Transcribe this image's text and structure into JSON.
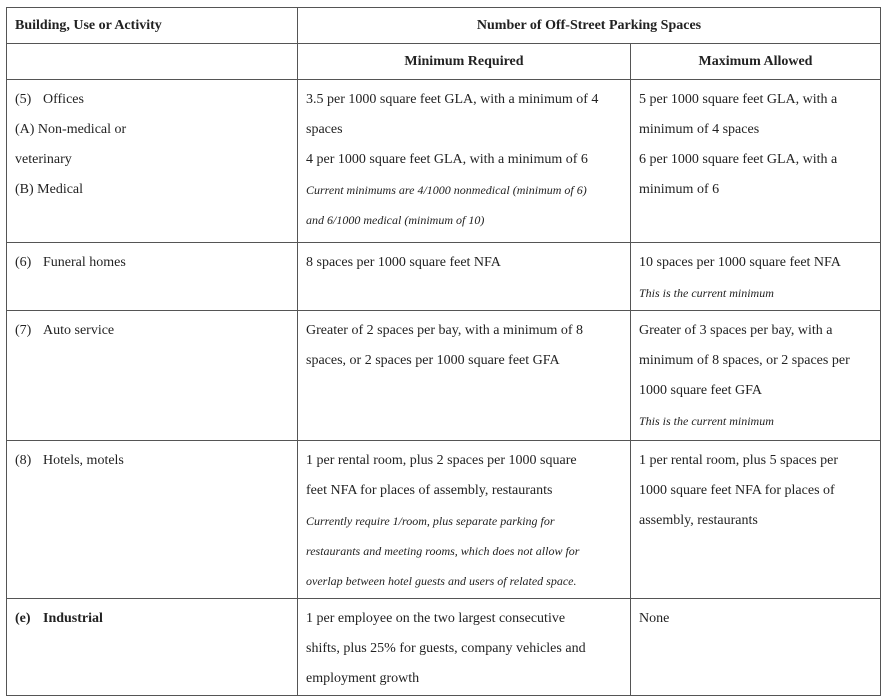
{
  "header": {
    "col_building": "Building, Use or Activity",
    "col_spaces": "Number of Off-Street Parking Spaces",
    "col_min": "Minimum Required",
    "col_max": "Maximum Allowed"
  },
  "rows": [
    {
      "num": "(5)",
      "building": "Offices",
      "building_sub": [
        "(A) Non-medical or",
        "veterinary",
        "(B) Medical"
      ],
      "minimum": [
        "3.5 per 1000 square feet GLA, with a minimum of 4",
        "spaces",
        "4 per 1000 square feet GLA, with a minimum of 6"
      ],
      "minimum_note": [
        "Current minimums are 4/1000 nonmedical (minimum of 6)",
        "and 6/1000 medical (minimum of 10)"
      ],
      "maximum": [
        "5 per 1000 square feet GLA, with a",
        "minimum of 4 spaces",
        "6 per 1000 square feet GLA, with a",
        "minimum of 6"
      ],
      "maximum_note": []
    },
    {
      "num": "(6)",
      "building": "Funeral homes",
      "minimum": [
        "8 spaces per 1000 square feet NFA"
      ],
      "minimum_note": [],
      "maximum": [
        "10 spaces per 1000 square feet NFA"
      ],
      "maximum_note": [
        "This is the current minimum"
      ]
    },
    {
      "num": "(7)",
      "building": "Auto service",
      "minimum": [
        "Greater of 2 spaces per bay, with a minimum of 8",
        "spaces, or 2 spaces per 1000 square feet GFA"
      ],
      "minimum_note": [],
      "maximum": [
        "Greater of 3 spaces per bay, with a",
        "minimum of 8 spaces, or 2 spaces per",
        "1000 square feet GFA"
      ],
      "maximum_note": [
        "This is the current minimum"
      ]
    },
    {
      "num": "(8)",
      "building": "Hotels, motels",
      "minimum": [
        "1 per rental room, plus 2 spaces per 1000 square",
        "feet NFA for places of assembly, restaurants"
      ],
      "minimum_note": [
        "Currently require 1/room, plus separate parking for",
        "restaurants and meeting rooms, which does not allow for",
        "overlap between hotel guests and users of related space."
      ],
      "maximum": [
        "1 per rental room, plus 5 spaces per",
        "1000 square feet NFA for places of",
        "assembly, restaurants"
      ],
      "maximum_note": []
    },
    {
      "num": "(e)",
      "building": "Industrial",
      "minimum": [
        "1 per employee on the two largest consecutive",
        "shifts, plus 25% for guests, company vehicles and",
        "employment growth"
      ],
      "minimum_note": [],
      "maximum": [
        "None"
      ],
      "maximum_note": []
    }
  ]
}
